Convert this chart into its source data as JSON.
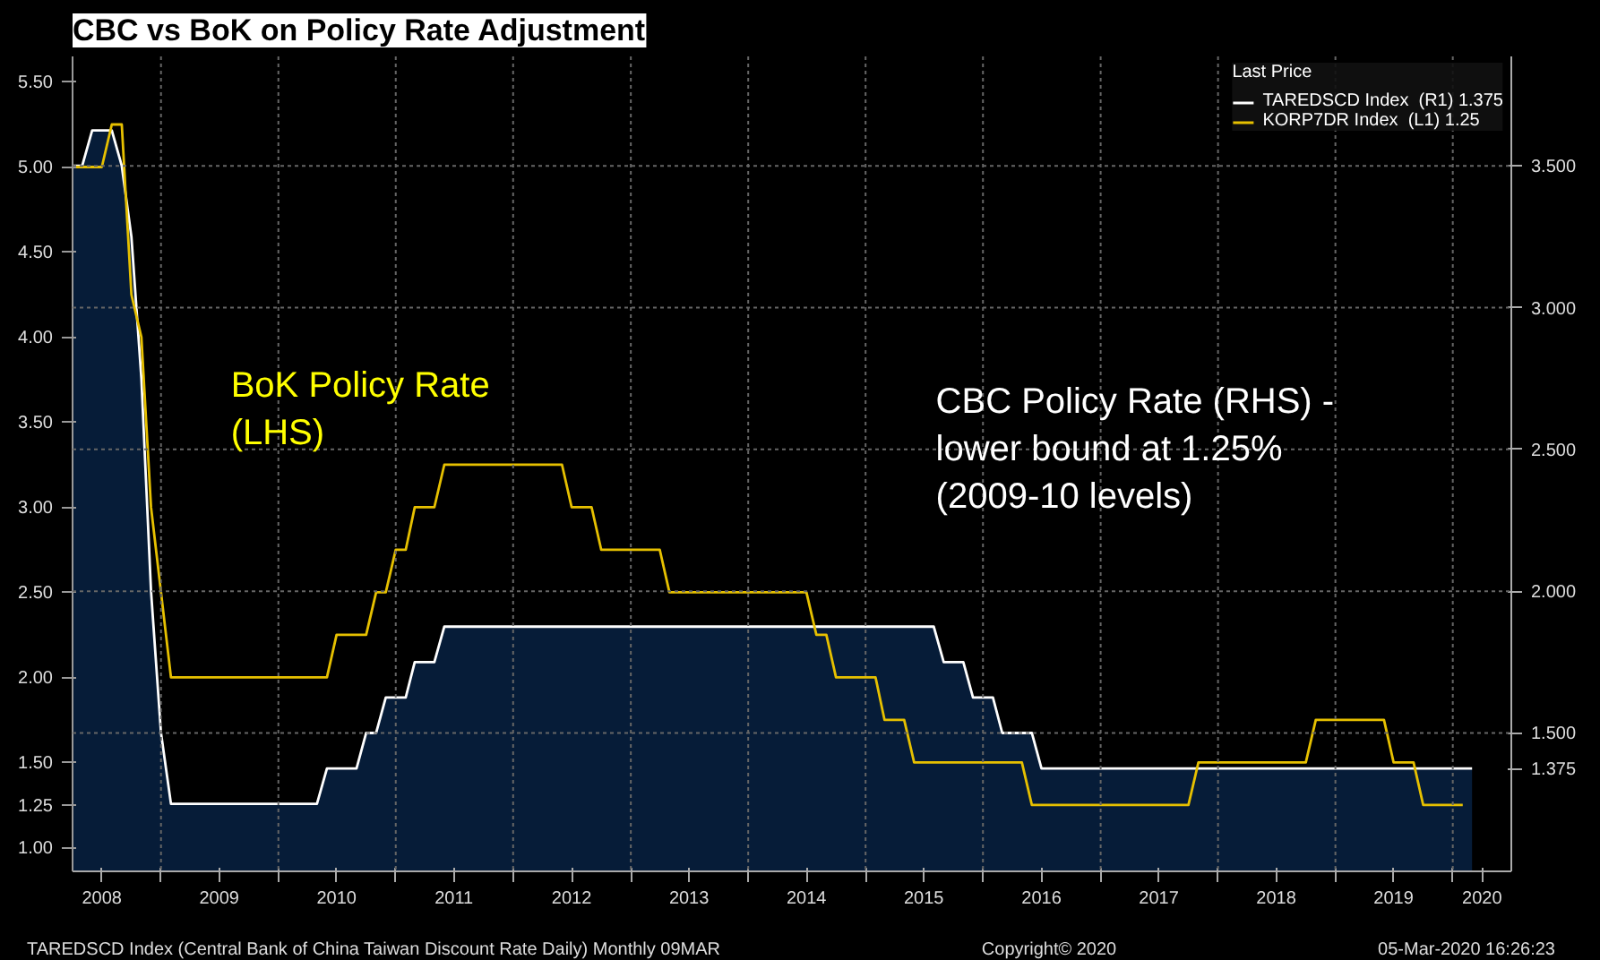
{
  "chart_data": {
    "type": "line",
    "title": "CBC vs BoK on Policy Rate Adjustment",
    "legend_title": "Last Price",
    "legend": "top right",
    "grid": true,
    "series": [
      {
        "name": "TAREDSCD Index  (R1) 1.375",
        "color": "#ffffff",
        "type": "area",
        "axis": "y2",
        "x": [
          "2008-04",
          "2008-05",
          "2008-06",
          "2008-08",
          "2008-09",
          "2008-10",
          "2008-11",
          "2008-12",
          "2009-01",
          "2009-02",
          "2010-05",
          "2010-06",
          "2010-09",
          "2010-10",
          "2010-11",
          "2010-12",
          "2011-02",
          "2011-03",
          "2011-05",
          "2011-06",
          "2015-08",
          "2015-09",
          "2015-11",
          "2015-12",
          "2016-02",
          "2016-03",
          "2016-06",
          "2016-07",
          "2020-03"
        ],
        "values": [
          3.5,
          3.5,
          3.625,
          3.625,
          3.5,
          3.25,
          2.75,
          2.0,
          1.5,
          1.25,
          1.25,
          1.375,
          1.375,
          1.5,
          1.5,
          1.625,
          1.625,
          1.75,
          1.75,
          1.875,
          1.875,
          1.75,
          1.75,
          1.625,
          1.625,
          1.5,
          1.5,
          1.375,
          1.375
        ]
      },
      {
        "name": "KORP7DR Index  (L1) 1.25",
        "color": "#e6c000",
        "x": [
          "2008-04",
          "2008-07",
          "2008-08",
          "2008-09",
          "2008-10",
          "2008-11",
          "2008-12",
          "2009-01",
          "2009-02",
          "2010-06",
          "2010-07",
          "2010-10",
          "2010-11",
          "2010-12",
          "2011-01",
          "2011-02",
          "2011-03",
          "2011-05",
          "2011-06",
          "2012-06",
          "2012-07",
          "2012-09",
          "2012-10",
          "2013-04",
          "2013-05",
          "2014-07",
          "2014-08",
          "2014-09",
          "2014-10",
          "2015-02",
          "2015-03",
          "2015-05",
          "2015-06",
          "2016-05",
          "2016-06",
          "2017-10",
          "2017-11",
          "2018-10",
          "2018-11",
          "2019-06",
          "2019-07",
          "2019-09",
          "2019-10",
          "2020-02"
        ],
        "values": [
          5.0,
          5.0,
          5.25,
          5.25,
          4.25,
          4.0,
          3.0,
          2.5,
          2.0,
          2.0,
          2.25,
          2.25,
          2.5,
          2.5,
          2.75,
          2.75,
          3.0,
          3.0,
          3.25,
          3.25,
          3.0,
          3.0,
          2.75,
          2.75,
          2.5,
          2.5,
          2.25,
          2.25,
          2.0,
          2.0,
          1.75,
          1.75,
          1.5,
          1.5,
          1.25,
          1.25,
          1.5,
          1.5,
          1.75,
          1.75,
          1.5,
          1.5,
          1.25,
          1.25
        ]
      }
    ],
    "xlim": [
      "2008-04",
      "2020-07"
    ],
    "xticks": [
      {
        "value": "2008-07",
        "label": "2008"
      },
      {
        "value": "2009",
        "label": null
      },
      {
        "value": "2009-07",
        "label": "2009"
      },
      {
        "value": "2010",
        "label": null
      },
      {
        "value": "2010-07",
        "label": "2010"
      },
      {
        "value": "2011",
        "label": null
      },
      {
        "value": "2011-07",
        "label": "2011"
      },
      {
        "value": "2012",
        "label": null
      },
      {
        "value": "2012-07",
        "label": "2012"
      },
      {
        "value": "2013",
        "label": null
      },
      {
        "value": "2013-07",
        "label": "2013"
      },
      {
        "value": "2014",
        "label": null
      },
      {
        "value": "2014-07",
        "label": "2014"
      },
      {
        "value": "2015",
        "label": null
      },
      {
        "value": "2015-07",
        "label": "2015"
      },
      {
        "value": "2016",
        "label": null
      },
      {
        "value": "2016-07",
        "label": "2016"
      },
      {
        "value": "2017",
        "label": null
      },
      {
        "value": "2017-07",
        "label": "2017"
      },
      {
        "value": "2018",
        "label": null
      },
      {
        "value": "2018-07",
        "label": "2018"
      },
      {
        "value": "2019",
        "label": null
      },
      {
        "value": "2019-07",
        "label": "2019"
      },
      {
        "value": "2020",
        "label": null
      },
      {
        "value": "2020-04",
        "label": "2020"
      }
    ],
    "ylim": [
      0.86,
      5.65
    ],
    "yticks": [
      {
        "value": 1.0,
        "label": "1.00"
      },
      {
        "value": 1.25,
        "label": "1.25"
      },
      {
        "value": 1.5,
        "label": "1.50"
      },
      {
        "value": 2.0,
        "label": "2.00"
      },
      {
        "value": 2.5,
        "label": "2.50"
      },
      {
        "value": 3.0,
        "label": "3.00"
      },
      {
        "value": 3.5,
        "label": "3.50"
      },
      {
        "value": 4.0,
        "label": "4.00"
      },
      {
        "value": 4.5,
        "label": "4.50"
      },
      {
        "value": 5.0,
        "label": "5.00"
      },
      {
        "value": 5.5,
        "label": "5.50"
      }
    ],
    "y2lim": [
      1.012,
      3.886
    ],
    "y2ticks": [
      {
        "value": 1.375,
        "label": "1.375"
      },
      {
        "value": 1.5,
        "label": "1.500"
      },
      {
        "value": 2.0,
        "label": "2.000"
      },
      {
        "value": 2.5,
        "label": "2.500"
      },
      {
        "value": 3.0,
        "label": "3.000"
      },
      {
        "value": 3.5,
        "label": "3.500"
      }
    ],
    "annotations": [
      "BoK Policy Rate\n(LHS)",
      "CBC Policy Rate (RHS) -\nlower bound at 1.25%\n(2009-10 levels)",
      "TAREDSCD Index (Central Bank of China Taiwan Discount Rate Daily)  Monthly 09MAR",
      "Copyright© 2020",
      "05-Mar-2020 16:26:23"
    ]
  }
}
